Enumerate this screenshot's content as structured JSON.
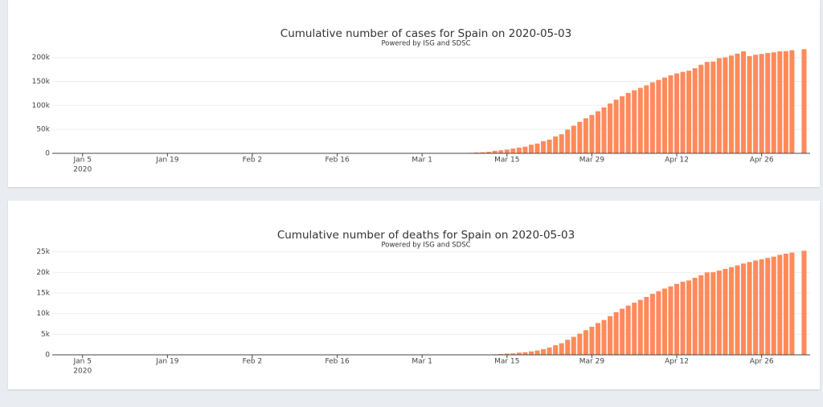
{
  "chart_data": [
    {
      "type": "bar",
      "title": "Cumulative number of cases for Spain on 2020-05-03",
      "subtitle": "Powered by ISG and SDSC",
      "color": "#ff8a5b",
      "grid": true,
      "x_year_label": "2020",
      "xlim": [
        "2019-12-31",
        "2020-05-04"
      ],
      "xticks": [
        {
          "value": "2020-01-05",
          "label": "Jan 5"
        },
        {
          "value": "2020-01-19",
          "label": "Jan 19"
        },
        {
          "value": "2020-02-02",
          "label": "Feb 2"
        },
        {
          "value": "2020-02-16",
          "label": "Feb 16"
        },
        {
          "value": "2020-03-01",
          "label": "Mar 1"
        },
        {
          "value": "2020-03-15",
          "label": "Mar 15"
        },
        {
          "value": "2020-03-29",
          "label": "Mar 29"
        },
        {
          "value": "2020-04-12",
          "label": "Apr 12"
        },
        {
          "value": "2020-04-26",
          "label": "Apr 26"
        }
      ],
      "ylim": [
        0,
        228000
      ],
      "yticks": [
        0,
        {
          "value": 50000,
          "label": "50k"
        },
        {
          "value": 100000,
          "label": "100k"
        },
        {
          "value": 150000,
          "label": "150k"
        },
        {
          "value": 200000,
          "label": "200k"
        }
      ],
      "x": [
        "2020-03-01",
        "2020-03-02",
        "2020-03-03",
        "2020-03-04",
        "2020-03-05",
        "2020-03-06",
        "2020-03-07",
        "2020-03-08",
        "2020-03-09",
        "2020-03-10",
        "2020-03-11",
        "2020-03-12",
        "2020-03-13",
        "2020-03-14",
        "2020-03-15",
        "2020-03-16",
        "2020-03-17",
        "2020-03-18",
        "2020-03-19",
        "2020-03-20",
        "2020-03-21",
        "2020-03-22",
        "2020-03-23",
        "2020-03-24",
        "2020-03-25",
        "2020-03-26",
        "2020-03-27",
        "2020-03-28",
        "2020-03-29",
        "2020-03-30",
        "2020-03-31",
        "2020-04-01",
        "2020-04-02",
        "2020-04-03",
        "2020-04-04",
        "2020-04-05",
        "2020-04-06",
        "2020-04-07",
        "2020-04-08",
        "2020-04-09",
        "2020-04-10",
        "2020-04-11",
        "2020-04-12",
        "2020-04-13",
        "2020-04-14",
        "2020-04-15",
        "2020-04-16",
        "2020-04-17",
        "2020-04-18",
        "2020-04-19",
        "2020-04-20",
        "2020-04-21",
        "2020-04-22",
        "2020-04-23",
        "2020-04-24",
        "2020-04-25",
        "2020-04-26",
        "2020-04-27",
        "2020-04-28",
        "2020-04-29",
        "2020-04-30",
        "2020-05-01",
        "2020-05-02",
        "2020-05-03"
      ],
      "values": [
        84,
        120,
        165,
        222,
        259,
        400,
        500,
        673,
        1073,
        1695,
        2277,
        3146,
        5232,
        6391,
        7798,
        9942,
        11748,
        13910,
        17963,
        20410,
        25374,
        28603,
        35136,
        39885,
        49515,
        57786,
        65719,
        73235,
        80110,
        87956,
        95923,
        104118,
        112065,
        119199,
        126168,
        131646,
        136675,
        141942,
        148220,
        153222,
        158273,
        163027,
        166831,
        170099,
        172541,
        177644,
        184948,
        190839,
        191726,
        198674,
        200210,
        204178,
        208389,
        213024,
        202990,
        205905,
        207634,
        209465,
        210773,
        212917,
        213435,
        215216,
        null,
        217466
      ]
    },
    {
      "type": "bar",
      "title": "Cumulative number of deaths for Spain on 2020-05-03",
      "subtitle": "Powered by ISG and SDSC",
      "color": "#ff8a5b",
      "grid": true,
      "x_year_label": "2020",
      "xlim": [
        "2019-12-31",
        "2020-05-04"
      ],
      "xticks": [
        {
          "value": "2020-01-05",
          "label": "Jan 5"
        },
        {
          "value": "2020-01-19",
          "label": "Jan 19"
        },
        {
          "value": "2020-02-02",
          "label": "Feb 2"
        },
        {
          "value": "2020-02-16",
          "label": "Feb 16"
        },
        {
          "value": "2020-03-01",
          "label": "Mar 1"
        },
        {
          "value": "2020-03-15",
          "label": "Mar 15"
        },
        {
          "value": "2020-03-29",
          "label": "Mar 29"
        },
        {
          "value": "2020-04-12",
          "label": "Apr 12"
        },
        {
          "value": "2020-04-26",
          "label": "Apr 26"
        }
      ],
      "ylim": [
        0,
        26500
      ],
      "yticks": [
        0,
        {
          "value": 5000,
          "label": "5k"
        },
        {
          "value": 10000,
          "label": "10k"
        },
        {
          "value": 15000,
          "label": "15k"
        },
        {
          "value": 20000,
          "label": "20k"
        },
        {
          "value": 25000,
          "label": "25k"
        }
      ],
      "x": [
        "2020-03-01",
        "2020-03-02",
        "2020-03-03",
        "2020-03-04",
        "2020-03-05",
        "2020-03-06",
        "2020-03-07",
        "2020-03-08",
        "2020-03-09",
        "2020-03-10",
        "2020-03-11",
        "2020-03-12",
        "2020-03-13",
        "2020-03-14",
        "2020-03-15",
        "2020-03-16",
        "2020-03-17",
        "2020-03-18",
        "2020-03-19",
        "2020-03-20",
        "2020-03-21",
        "2020-03-22",
        "2020-03-23",
        "2020-03-24",
        "2020-03-25",
        "2020-03-26",
        "2020-03-27",
        "2020-03-28",
        "2020-03-29",
        "2020-03-30",
        "2020-03-31",
        "2020-04-01",
        "2020-04-02",
        "2020-04-03",
        "2020-04-04",
        "2020-04-05",
        "2020-04-06",
        "2020-04-07",
        "2020-04-08",
        "2020-04-09",
        "2020-04-10",
        "2020-04-11",
        "2020-04-12",
        "2020-04-13",
        "2020-04-14",
        "2020-04-15",
        "2020-04-16",
        "2020-04-17",
        "2020-04-18",
        "2020-04-19",
        "2020-04-20",
        "2020-04-21",
        "2020-04-22",
        "2020-04-23",
        "2020-04-24",
        "2020-04-25",
        "2020-04-26",
        "2020-04-27",
        "2020-04-28",
        "2020-04-29",
        "2020-04-30",
        "2020-05-01",
        "2020-05-02",
        "2020-05-03"
      ],
      "values": [
        0,
        0,
        1,
        2,
        3,
        5,
        10,
        17,
        28,
        35,
        54,
        55,
        133,
        195,
        289,
        342,
        533,
        623,
        830,
        1043,
        1375,
        1772,
        2311,
        2808,
        3647,
        4365,
        5138,
        5982,
        6803,
        7716,
        8464,
        9387,
        10348,
        11198,
        11947,
        12641,
        13341,
        14045,
        14792,
        15447,
        16081,
        16606,
        17209,
        17756,
        18056,
        18708,
        19315,
        20002,
        20043,
        20453,
        20852,
        21282,
        21717,
        22157,
        22524,
        22902,
        23190,
        23521,
        23822,
        24275,
        24543,
        24824,
        null,
        25264
      ]
    }
  ]
}
